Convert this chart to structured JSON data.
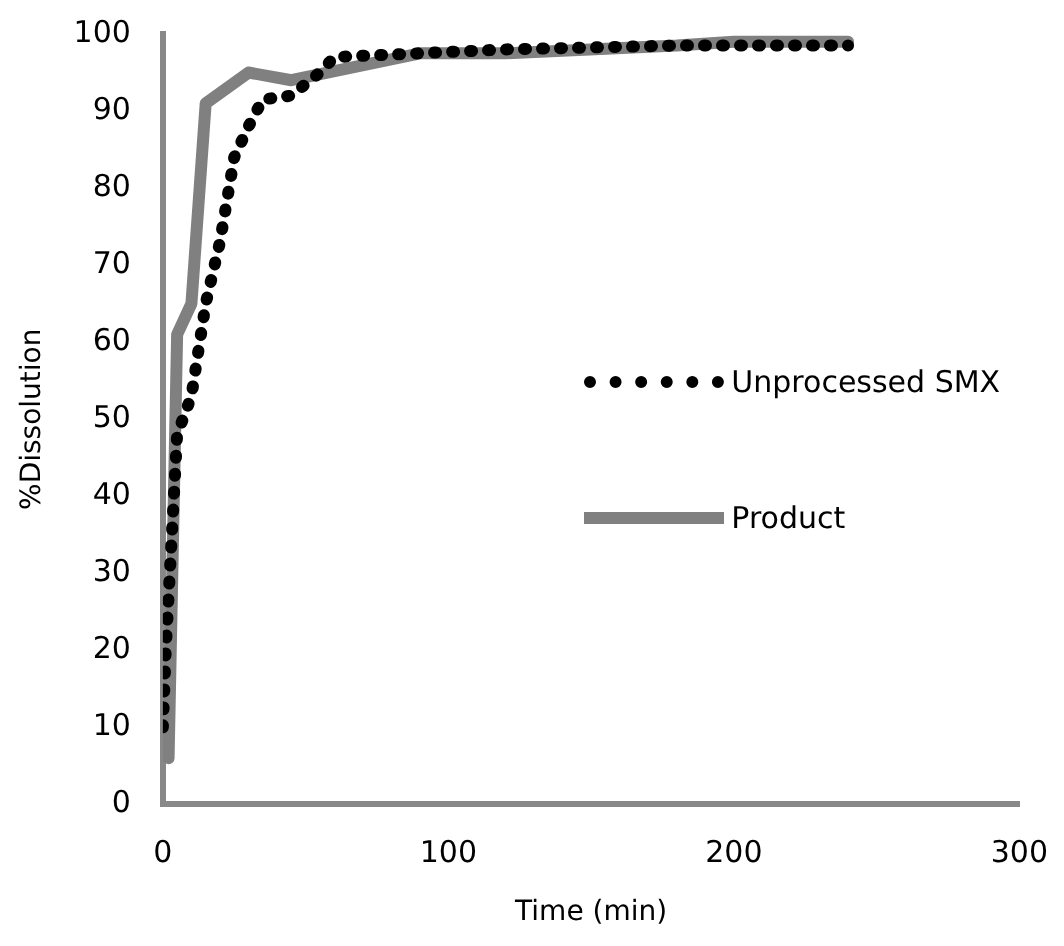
{
  "chart_data": {
    "type": "line",
    "xlabel": "Time (min)",
    "ylabel": "%Dissolution",
    "xlim": [
      0,
      300
    ],
    "xticks": [
      0,
      100,
      200,
      300
    ],
    "ylim": [
      0,
      100
    ],
    "yticks": [
      0,
      10,
      20,
      30,
      40,
      50,
      60,
      70,
      80,
      90,
      100
    ],
    "grid": false,
    "legend": "right",
    "marker": "none",
    "series": [
      {
        "name": "Unprocessed SMX",
        "color": "#000000",
        "line_style": "dotted",
        "x": [
          0,
          1,
          5,
          10,
          15,
          20,
          25,
          30,
          35,
          45,
          55,
          60,
          90,
          120,
          180,
          240
        ],
        "values": [
          10,
          20,
          48,
          53,
          65,
          73,
          84,
          88,
          91.5,
          92,
          95,
          97,
          97.5,
          98,
          98.5,
          98.5
        ]
      },
      {
        "name": "Product",
        "color": "#808080",
        "line_style": "solid",
        "x": [
          2,
          5,
          10,
          15,
          30,
          45,
          90,
          120,
          180,
          200,
          240
        ],
        "values": [
          6,
          61,
          65,
          91,
          95,
          94,
          97.5,
          97.5,
          98.5,
          99,
          99
        ]
      }
    ]
  }
}
